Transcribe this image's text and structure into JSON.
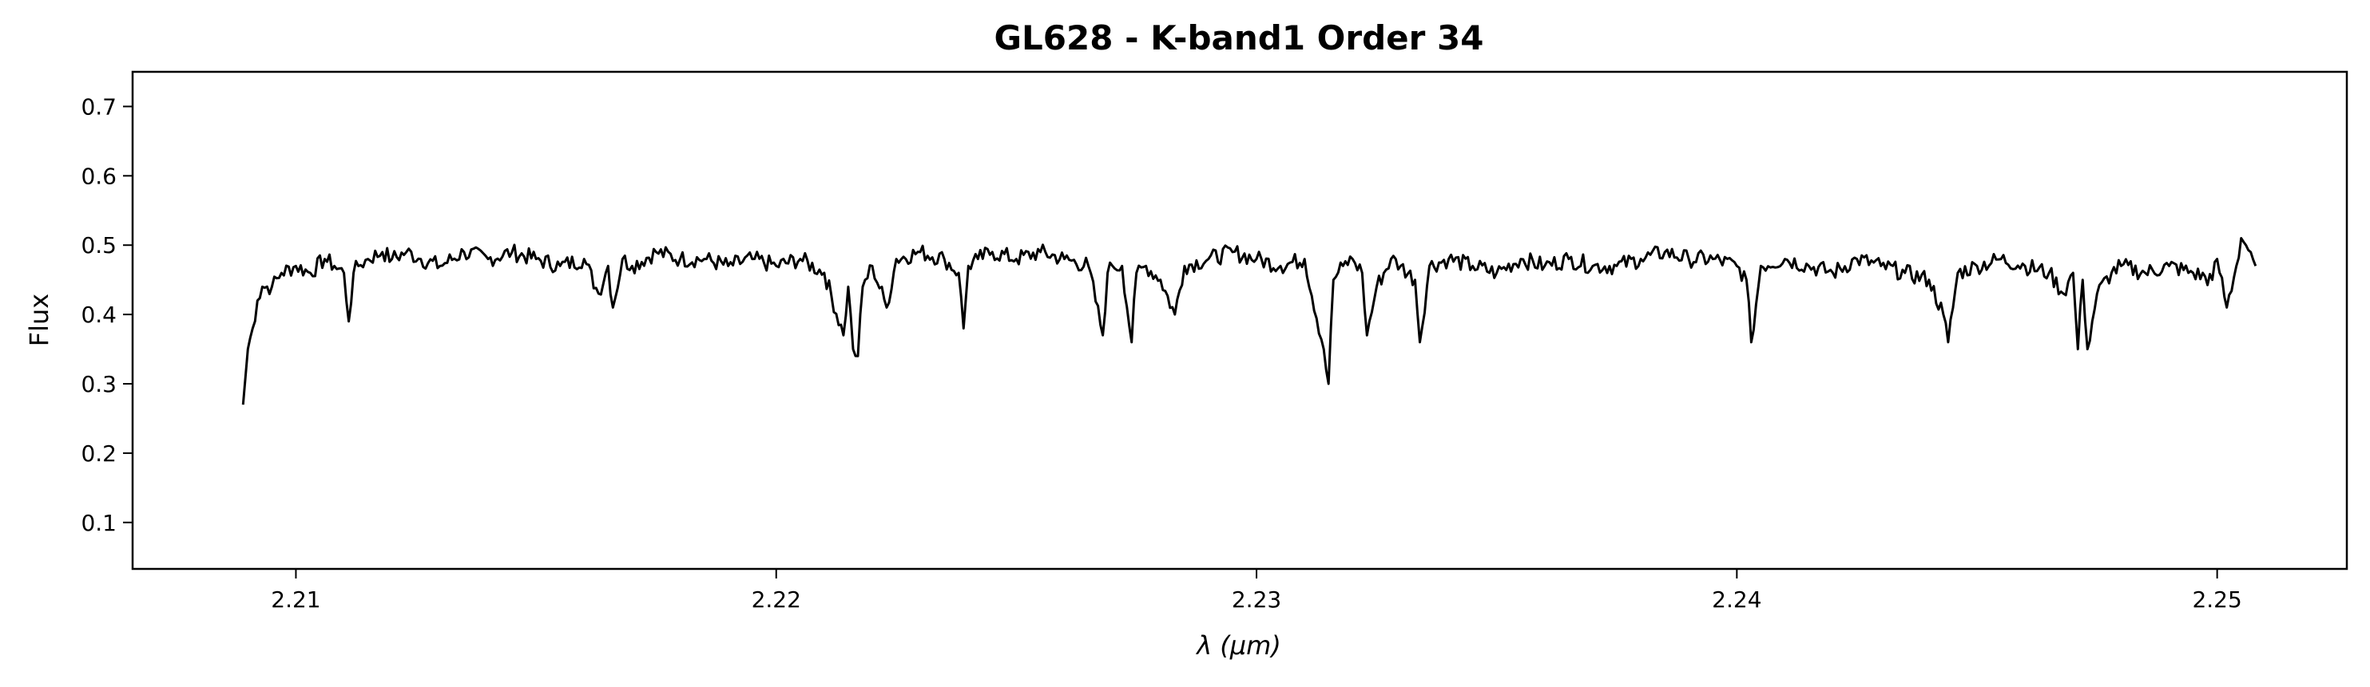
{
  "chart_data": {
    "type": "line",
    "title": "GL628 - K-band1 Order 34",
    "xlabel": "λ (μm)",
    "ylabel": "Flux",
    "xlim": [
      2.2066,
      2.2527
    ],
    "ylim": [
      0.033,
      0.75
    ],
    "xticks": [
      2.21,
      2.22,
      2.23,
      2.24,
      2.25
    ],
    "xtick_labels": [
      "2.21",
      "2.22",
      "2.23",
      "2.24",
      "2.25"
    ],
    "yticks": [
      0.1,
      0.2,
      0.3,
      0.4,
      0.5,
      0.6,
      0.7
    ],
    "ytick_labels": [
      "0.1",
      "0.2",
      "0.3",
      "0.4",
      "0.5",
      "0.6",
      "0.7"
    ],
    "grid": false,
    "line_color": "#000000",
    "series": [
      {
        "x": [
          2.2089,
          2.209,
          2.2091,
          2.2092,
          2.2093,
          2.2095,
          2.2097,
          2.21,
          2.2103,
          2.2106,
          2.2108,
          2.211,
          2.2111,
          2.2112,
          2.2113,
          2.2115,
          2.2118,
          2.212,
          2.2123,
          2.2126,
          2.213,
          2.2135,
          2.214,
          2.2145,
          2.215,
          2.2155,
          2.216,
          2.2163,
          2.2165,
          2.2166,
          2.2168,
          2.217,
          2.2175,
          2.218,
          2.2185,
          2.219,
          2.2195,
          2.22,
          2.2205,
          2.221,
          2.2214,
          2.2215,
          2.2216,
          2.2217,
          2.2218,
          2.222,
          2.2223,
          2.2225,
          2.223,
          2.2235,
          2.2238,
          2.2239,
          2.224,
          2.2242,
          2.2245,
          2.225,
          2.2255,
          2.226,
          2.2265,
          2.2268,
          2.2269,
          2.227,
          2.2272,
          2.2274,
          2.2275,
          2.2277,
          2.228,
          2.2283,
          2.2285,
          2.229,
          2.2295,
          2.23,
          2.2305,
          2.231,
          2.2314,
          2.2315,
          2.2316,
          2.2318,
          2.232,
          2.2322,
          2.2323,
          2.2325,
          2.2328,
          2.233,
          2.2333,
          2.2334,
          2.2336,
          2.234,
          2.2345,
          2.235,
          2.2355,
          2.236,
          2.2365,
          2.237,
          2.2375,
          2.238,
          2.2385,
          2.239,
          2.2395,
          2.24,
          2.2402,
          2.2403,
          2.2405,
          2.241,
          2.2415,
          2.242,
          2.2425,
          2.243,
          2.2435,
          2.244,
          2.2443,
          2.2444,
          2.2446,
          2.245,
          2.2455,
          2.246,
          2.2465,
          2.2468,
          2.247,
          2.2471,
          2.2472,
          2.2473,
          2.2475,
          2.2478,
          2.248,
          2.2485,
          2.249,
          2.2495,
          2.2499,
          2.25,
          2.2502,
          2.2504,
          2.2505,
          2.2506,
          2.2507,
          2.2508
        ],
        "y": [
          0.27,
          0.35,
          0.38,
          0.42,
          0.44,
          0.44,
          0.46,
          0.47,
          0.46,
          0.48,
          0.47,
          0.46,
          0.39,
          0.46,
          0.47,
          0.48,
          0.49,
          0.48,
          0.49,
          0.48,
          0.47,
          0.49,
          0.48,
          0.49,
          0.48,
          0.47,
          0.48,
          0.43,
          0.47,
          0.41,
          0.48,
          0.47,
          0.49,
          0.48,
          0.48,
          0.47,
          0.48,
          0.47,
          0.48,
          0.46,
          0.37,
          0.44,
          0.35,
          0.34,
          0.44,
          0.47,
          0.41,
          0.48,
          0.49,
          0.48,
          0.46,
          0.38,
          0.47,
          0.48,
          0.49,
          0.48,
          0.49,
          0.48,
          0.47,
          0.37,
          0.46,
          0.47,
          0.47,
          0.36,
          0.46,
          0.47,
          0.45,
          0.4,
          0.47,
          0.48,
          0.49,
          0.48,
          0.47,
          0.48,
          0.35,
          0.3,
          0.45,
          0.47,
          0.48,
          0.46,
          0.37,
          0.44,
          0.48,
          0.47,
          0.45,
          0.36,
          0.47,
          0.48,
          0.47,
          0.46,
          0.48,
          0.47,
          0.48,
          0.47,
          0.47,
          0.48,
          0.49,
          0.48,
          0.48,
          0.47,
          0.45,
          0.36,
          0.47,
          0.48,
          0.47,
          0.46,
          0.48,
          0.47,
          0.46,
          0.45,
          0.4,
          0.36,
          0.46,
          0.47,
          0.48,
          0.47,
          0.46,
          0.43,
          0.46,
          0.35,
          0.45,
          0.35,
          0.43,
          0.46,
          0.47,
          0.46,
          0.47,
          0.46,
          0.45,
          0.48,
          0.41,
          0.47,
          0.51,
          0.5,
          0.49,
          0.47
        ]
      }
    ]
  }
}
